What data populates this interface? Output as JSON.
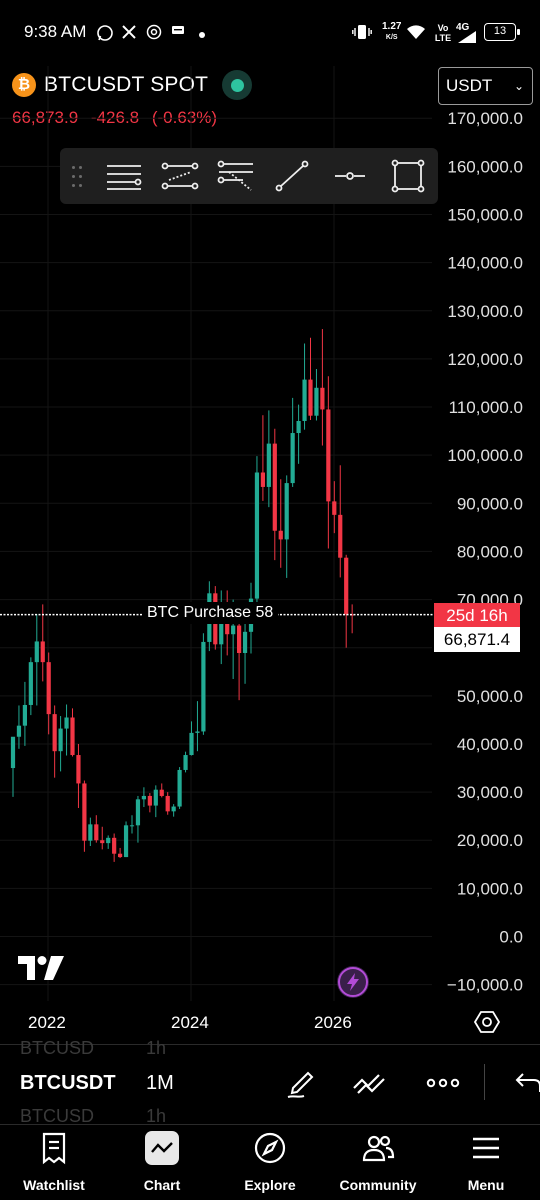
{
  "status_bar": {
    "time": "9:38 AM",
    "net_speed": "1.27",
    "net_unit": "K/S",
    "carrier": "Vo LTE",
    "network": "4G",
    "battery": "13"
  },
  "header": {
    "symbol": "BTCUSDT SPOT",
    "price": "66,873.9",
    "change": "-426.8",
    "change_pct": "(-0.63%)",
    "currency": "USDT"
  },
  "alert": {
    "label": "BTC Purchase 58",
    "countdown": "25d 16h",
    "price": "66,871.4"
  },
  "price_axis": [
    "170,000.0",
    "160,000.0",
    "150,000.0",
    "140,000.0",
    "130,000.0",
    "120,000.0",
    "110,000.0",
    "100,000.0",
    "90,000.0",
    "80,000.0",
    "70,000.0",
    "50,000.0",
    "40,000.0",
    "30,000.0",
    "20,000.0",
    "10,000.0",
    "0.0",
    "−10,000.0"
  ],
  "time_axis": [
    "2022",
    "2024",
    "2026"
  ],
  "symbol_strip": {
    "prev_symbol": "BTCUSD",
    "prev_interval": "1h",
    "symbol": "BTCUSDT",
    "interval": "1M",
    "next_symbol": "BTCUSD",
    "next_interval": "1h"
  },
  "nav": {
    "watchlist": "Watchlist",
    "chart": "Chart",
    "explore": "Explore",
    "community": "Community",
    "menu": "Menu"
  },
  "colors": {
    "up": "#22ab94",
    "down": "#f23645",
    "alert_line": "#ffffff"
  },
  "chart_data": {
    "type": "candlestick",
    "interval": "1M",
    "x_ticks": [
      "2022",
      "2024",
      "2026"
    ],
    "ylim": [
      -10000,
      170000
    ],
    "candles": [
      {
        "o": 35000,
        "h": 40000,
        "l": 29000,
        "c": 41500
      },
      {
        "o": 41500,
        "h": 48000,
        "l": 39000,
        "c": 43800
      },
      {
        "o": 43800,
        "h": 52900,
        "l": 39600,
        "c": 48100
      },
      {
        "o": 48100,
        "h": 58000,
        "l": 46000,
        "c": 57000
      },
      {
        "o": 57000,
        "h": 67000,
        "l": 48000,
        "c": 61300
      },
      {
        "o": 61300,
        "h": 69000,
        "l": 53000,
        "c": 57000
      },
      {
        "o": 57000,
        "h": 59000,
        "l": 42000,
        "c": 46200
      },
      {
        "o": 46200,
        "h": 48000,
        "l": 33000,
        "c": 38500
      },
      {
        "o": 38500,
        "h": 45800,
        "l": 34300,
        "c": 43200
      },
      {
        "o": 43200,
        "h": 48200,
        "l": 37600,
        "c": 45500
      },
      {
        "o": 45500,
        "h": 47400,
        "l": 37400,
        "c": 37700
      },
      {
        "o": 37700,
        "h": 40000,
        "l": 26700,
        "c": 31800
      },
      {
        "o": 31800,
        "h": 32400,
        "l": 17600,
        "c": 19900
      },
      {
        "o": 19900,
        "h": 24700,
        "l": 18800,
        "c": 23300
      },
      {
        "o": 23300,
        "h": 25200,
        "l": 19500,
        "c": 20000
      },
      {
        "o": 20000,
        "h": 22800,
        "l": 18100,
        "c": 19400
      },
      {
        "o": 19400,
        "h": 21000,
        "l": 18200,
        "c": 20500
      },
      {
        "o": 20500,
        "h": 21400,
        "l": 15500,
        "c": 17200
      },
      {
        "o": 17200,
        "h": 18400,
        "l": 16300,
        "c": 16500
      },
      {
        "o": 16500,
        "h": 23900,
        "l": 16500,
        "c": 23100
      },
      {
        "o": 23100,
        "h": 25200,
        "l": 21400,
        "c": 23100
      },
      {
        "o": 23100,
        "h": 29200,
        "l": 19500,
        "c": 28500
      },
      {
        "o": 28500,
        "h": 31000,
        "l": 26900,
        "c": 29200
      },
      {
        "o": 29200,
        "h": 29800,
        "l": 25800,
        "c": 27200
      },
      {
        "o": 27200,
        "h": 31400,
        "l": 24800,
        "c": 30500
      },
      {
        "o": 30500,
        "h": 31800,
        "l": 28900,
        "c": 29200
      },
      {
        "o": 29200,
        "h": 30000,
        "l": 25300,
        "c": 26000
      },
      {
        "o": 26000,
        "h": 27500,
        "l": 24900,
        "c": 27000
      },
      {
        "o": 27000,
        "h": 35200,
        "l": 26500,
        "c": 34600
      },
      {
        "o": 34600,
        "h": 38400,
        "l": 34100,
        "c": 37700
      },
      {
        "o": 37700,
        "h": 44700,
        "l": 37600,
        "c": 42300
      },
      {
        "o": 42300,
        "h": 48900,
        "l": 38500,
        "c": 42600
      },
      {
        "o": 42600,
        "h": 63000,
        "l": 41900,
        "c": 61200
      },
      {
        "o": 61200,
        "h": 73800,
        "l": 59300,
        "c": 71300
      },
      {
        "o": 71300,
        "h": 72800,
        "l": 59600,
        "c": 60700
      },
      {
        "o": 60700,
        "h": 71900,
        "l": 56600,
        "c": 67500
      },
      {
        "o": 67500,
        "h": 71900,
        "l": 58400,
        "c": 62800
      },
      {
        "o": 62800,
        "h": 70000,
        "l": 53500,
        "c": 64600
      },
      {
        "o": 64600,
        "h": 65600,
        "l": 49100,
        "c": 58900
      },
      {
        "o": 58900,
        "h": 65000,
        "l": 52500,
        "c": 63300
      },
      {
        "o": 63300,
        "h": 73500,
        "l": 58800,
        "c": 70200
      },
      {
        "o": 70200,
        "h": 99800,
        "l": 66800,
        "c": 96400
      },
      {
        "o": 96400,
        "h": 108300,
        "l": 90500,
        "c": 93400
      },
      {
        "o": 93400,
        "h": 109300,
        "l": 89200,
        "c": 102400
      },
      {
        "o": 102400,
        "h": 105500,
        "l": 78200,
        "c": 84300
      },
      {
        "o": 84300,
        "h": 95000,
        "l": 76600,
        "c": 82500
      },
      {
        "o": 82500,
        "h": 95800,
        "l": 74500,
        "c": 94200
      },
      {
        "o": 94200,
        "h": 111900,
        "l": 93400,
        "c": 104600
      },
      {
        "o": 104600,
        "h": 110500,
        "l": 98200,
        "c": 107100
      },
      {
        "o": 107100,
        "h": 123200,
        "l": 105300,
        "c": 115700
      },
      {
        "o": 115700,
        "h": 124400,
        "l": 107300,
        "c": 108200
      },
      {
        "o": 108200,
        "h": 117900,
        "l": 107200,
        "c": 114000
      },
      {
        "o": 114000,
        "h": 126200,
        "l": 102000,
        "c": 109500
      },
      {
        "o": 109500,
        "h": 116400,
        "l": 80600,
        "c": 90400
      },
      {
        "o": 90400,
        "h": 94600,
        "l": 83800,
        "c": 87600
      },
      {
        "o": 87600,
        "h": 97900,
        "l": 74600,
        "c": 78700
      },
      {
        "o": 78700,
        "h": 79300,
        "l": 60000,
        "c": 66900
      },
      {
        "o": 66900,
        "h": 69000,
        "l": 63000,
        "c": 66871
      }
    ]
  }
}
